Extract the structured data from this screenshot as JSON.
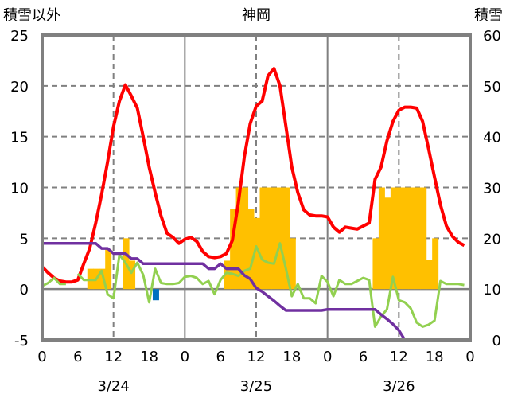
{
  "chart_data": {
    "type": "line",
    "title": "神岡",
    "ylabel_left": "積雪以外",
    "ylabel_right": "積雪",
    "ylim_left": [
      -5,
      25
    ],
    "yticks_left": [
      -5,
      0,
      5,
      10,
      15,
      20,
      25
    ],
    "ylim_right": [
      0,
      60
    ],
    "yticks_right": [
      0,
      10,
      20,
      30,
      40,
      50,
      60
    ],
    "x_hours_total": 72,
    "xtick_labels": [
      "0",
      "6",
      "12",
      "18",
      "0",
      "6",
      "12",
      "18",
      "0",
      "6",
      "12",
      "18",
      "0"
    ],
    "date_labels": [
      "3/24",
      "3/25",
      "3/26"
    ],
    "grid": "dashed horizontal at 5,10,15,20; dashed vertical at 12h; solid at day boundaries and 0",
    "colors": {
      "red": "#FF0000",
      "green": "#92D050",
      "purple": "#7030A0",
      "orange": "#FFC000",
      "blue": "#0070C0",
      "frame": "#808080"
    },
    "series": [
      {
        "name": "red",
        "axis": "left",
        "kind": "line",
        "values": [
          2.2,
          1.6,
          1.1,
          0.8,
          0.7,
          0.7,
          0.9,
          2.5,
          4,
          6.5,
          9.3,
          12.5,
          16,
          18.5,
          20.1,
          19,
          17.8,
          15,
          12,
          9.5,
          7.2,
          5.5,
          5.1,
          4.5,
          4.9,
          5.1,
          4.7,
          3.7,
          3.2,
          3.1,
          3.2,
          3.5,
          4.8,
          8.5,
          13,
          16.3,
          18,
          18.5,
          21,
          21.7,
          20,
          16,
          12,
          9.5,
          7.8,
          7.3,
          7.2,
          7.2,
          7.1,
          6.1,
          5.6,
          6.1,
          6.0,
          5.9,
          6.2,
          6.5,
          10.8,
          12,
          14.6,
          16.5,
          17.6,
          17.9,
          17.9,
          17.8,
          16.5,
          13.8,
          11,
          8.3,
          6.2,
          5.2,
          4.6,
          4.3
        ]
      },
      {
        "name": "green",
        "axis": "left",
        "kind": "line",
        "values": [
          0.3,
          0.6,
          1.1,
          0.5,
          0.5,
          null,
          1.5,
          0.9,
          0.9,
          0.9,
          1.8,
          -0.5,
          -0.9,
          3.4,
          2.6,
          1.6,
          2.6,
          1.4,
          -1.3,
          2.0,
          0.6,
          0.5,
          0.5,
          0.6,
          1.2,
          1.3,
          1.1,
          0.5,
          0.8,
          -0.5,
          0.9,
          1.6,
          1.5,
          1.3,
          1.8,
          2.0,
          4.2,
          2.9,
          2.6,
          2.5,
          4.5,
          2.0,
          -0.7,
          0.5,
          -0.9,
          -0.9,
          -1.4,
          1.3,
          0.7,
          -0.7,
          0.9,
          0.5,
          0.5,
          0.8,
          1.1,
          0.9,
          -3.7,
          -2.7,
          -2.0,
          1.2,
          -1.1,
          -1.3,
          -1.9,
          -3.3,
          -3.7,
          -3.5,
          -3.1,
          0.8,
          0.5,
          0.5,
          0.5,
          0.4
        ]
      },
      {
        "name": "purple",
        "axis": "right",
        "kind": "step-line",
        "values": [
          19,
          19,
          19,
          19,
          19,
          19,
          19,
          19,
          19,
          19,
          18,
          18,
          17,
          17,
          17,
          16,
          16,
          15,
          15,
          15,
          15,
          15,
          15,
          15,
          15,
          15,
          15,
          15,
          14,
          14,
          15,
          14,
          14,
          14,
          12.7,
          12,
          10.2,
          9.5,
          8.6,
          7.7,
          6.7,
          5.8,
          5.8,
          5.8,
          5.8,
          5.8,
          5.8,
          5.8,
          6,
          6,
          6,
          6,
          6,
          6,
          6,
          6,
          6,
          5,
          4.1,
          3.1,
          1.9,
          0,
          0,
          0,
          0,
          0,
          0,
          0,
          0,
          0,
          0,
          0
        ]
      },
      {
        "name": "orange",
        "axis": "left",
        "kind": "bar",
        "points": [
          [
            8,
            2
          ],
          [
            9,
            2
          ],
          [
            10,
            2
          ],
          [
            11,
            3.9
          ],
          [
            14,
            5
          ],
          [
            15,
            2.8
          ],
          [
            31,
            2.8
          ],
          [
            32,
            7.9
          ],
          [
            33,
            10
          ],
          [
            34,
            10
          ],
          [
            35,
            7.9
          ],
          [
            36,
            7
          ],
          [
            37,
            10
          ],
          [
            38,
            10
          ],
          [
            39,
            10
          ],
          [
            40,
            10
          ],
          [
            41,
            10
          ],
          [
            42,
            5
          ],
          [
            56,
            5
          ],
          [
            57,
            10
          ],
          [
            58,
            9
          ],
          [
            59,
            10
          ],
          [
            60,
            10
          ],
          [
            61,
            10
          ],
          [
            62,
            10
          ],
          [
            63,
            10
          ],
          [
            64,
            10
          ],
          [
            65,
            2.9
          ],
          [
            66,
            5
          ]
        ]
      },
      {
        "name": "blue",
        "axis": "left",
        "kind": "bar",
        "points": [
          [
            19,
            -1.1
          ]
        ]
      }
    ]
  }
}
